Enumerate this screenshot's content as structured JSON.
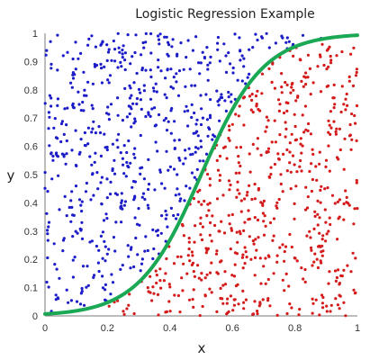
{
  "chart_data": {
    "type": "scatter",
    "title": "Logistic Regression Example",
    "xlabel": "x",
    "ylabel": "y",
    "xlim": [
      0,
      1
    ],
    "ylim": [
      0,
      1
    ],
    "x_ticks": [
      "0",
      "0.2",
      "0.4",
      "0.6",
      "0.8",
      "1"
    ],
    "y_ticks": [
      "0",
      "0.1",
      "0.2",
      "0.3",
      "0.4",
      "0.5",
      "0.6",
      "0.7",
      "0.8",
      "0.9",
      "1"
    ],
    "grid": false,
    "point_count_per_series": 600,
    "series": [
      {
        "kind": "points",
        "color": "#1c1cc8",
        "region": "above-curve"
      },
      {
        "kind": "points",
        "color": "#d41a1a",
        "region": "below-curve"
      },
      {
        "kind": "curve",
        "color": "#1aa855",
        "function": "logistic",
        "midpoint": 0.5,
        "steepness": 10
      }
    ]
  }
}
